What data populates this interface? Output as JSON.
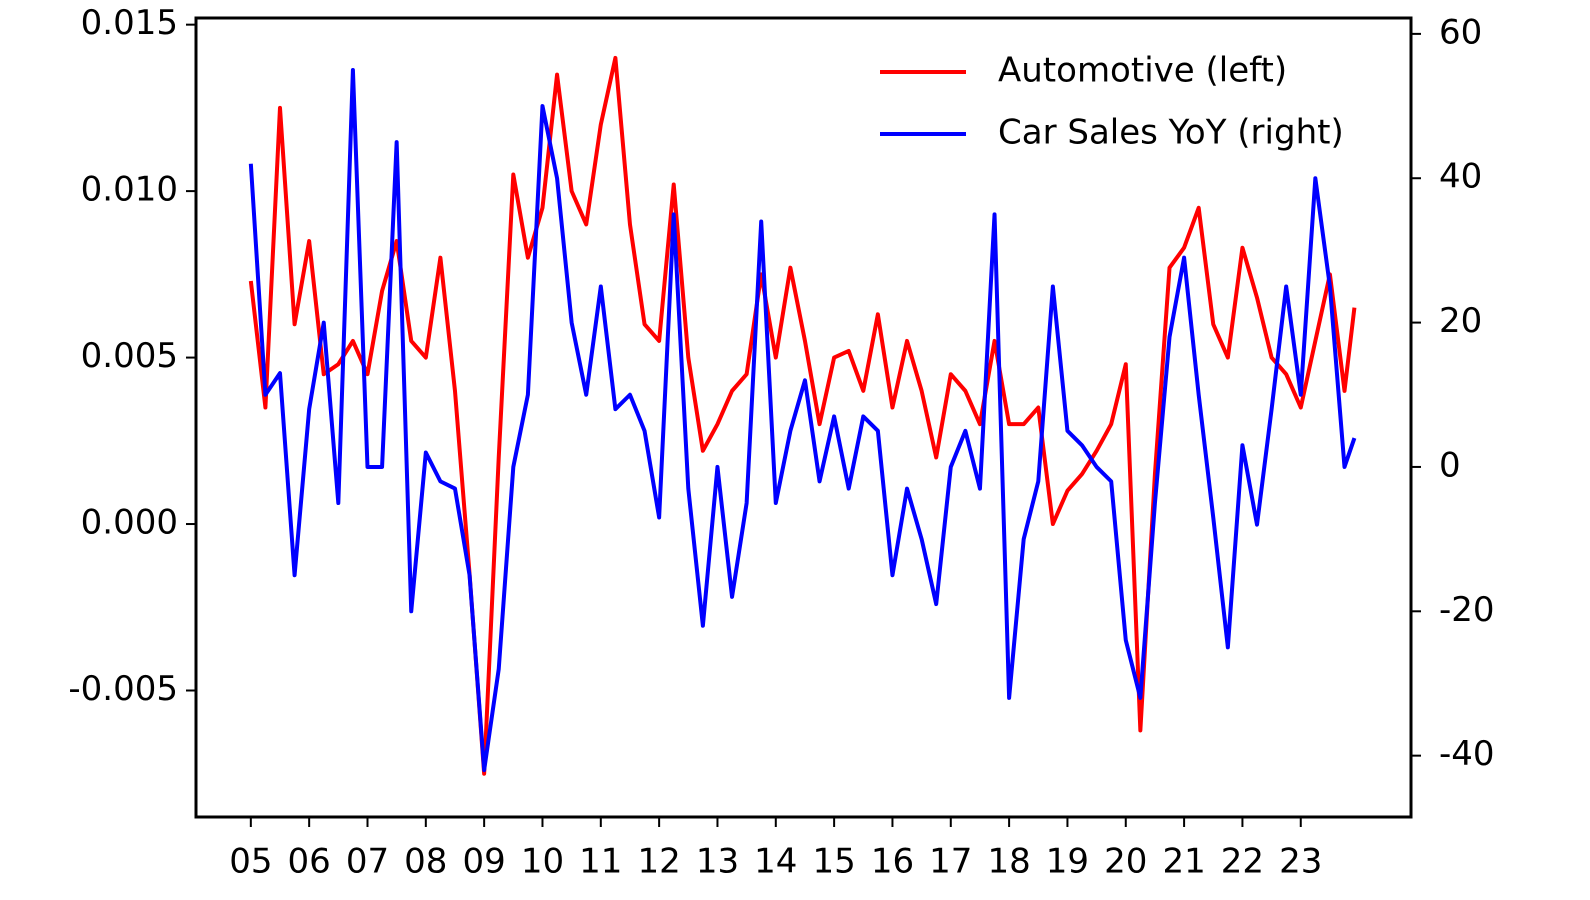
{
  "chart_data": {
    "type": "line",
    "x": [
      5,
      5.25,
      5.5,
      5.75,
      6,
      6.25,
      6.5,
      6.75,
      7,
      7.25,
      7.5,
      7.75,
      8,
      8.25,
      8.5,
      8.75,
      9,
      9.25,
      9.5,
      9.75,
      10,
      10.25,
      10.5,
      10.75,
      11,
      11.25,
      11.5,
      11.75,
      12,
      12.25,
      12.5,
      12.75,
      13,
      13.25,
      13.5,
      13.75,
      14,
      14.25,
      14.5,
      14.75,
      15,
      15.25,
      15.5,
      15.75,
      16,
      16.25,
      16.5,
      16.75,
      17,
      17.25,
      17.5,
      17.75,
      18,
      18.25,
      18.5,
      18.75,
      19,
      19.25,
      19.5,
      19.75,
      20,
      20.25,
      20.5,
      20.75,
      21,
      21.25,
      21.5,
      21.75,
      22,
      22.25,
      22.5,
      22.75,
      23,
      23.25,
      23.5,
      23.75,
      23.92
    ],
    "series": [
      {
        "name": "Automotive (left)",
        "color": "#ff0000",
        "axis": "y",
        "values": [
          0.0073,
          0.0035,
          0.0125,
          0.006,
          0.0085,
          0.0045,
          0.0048,
          0.0055,
          0.0045,
          0.007,
          0.0085,
          0.0055,
          0.005,
          0.008,
          0.004,
          -0.0015,
          -0.0075,
          0.002,
          0.0105,
          0.008,
          0.0095,
          0.0135,
          0.01,
          0.009,
          0.012,
          0.014,
          0.009,
          0.006,
          0.0055,
          0.0102,
          0.005,
          0.0022,
          0.003,
          0.004,
          0.0045,
          0.0075,
          0.005,
          0.0077,
          0.0055,
          0.003,
          0.005,
          0.0052,
          0.004,
          0.0063,
          0.0035,
          0.0055,
          0.004,
          0.002,
          0.0045,
          0.004,
          0.003,
          0.0055,
          0.003,
          0.003,
          0.0035,
          0.0,
          0.001,
          0.0015,
          0.0022,
          0.003,
          0.0048,
          -0.0062,
          0.0015,
          0.0077,
          0.0083,
          0.0095,
          0.006,
          0.005,
          0.0083,
          0.0068,
          0.005,
          0.0045,
          0.0035,
          0.0055,
          0.0075,
          0.004,
          0.0065
        ]
      },
      {
        "name": "Car Sales YoY (right)",
        "color": "#0000ff",
        "axis": "y2",
        "values": [
          42,
          10,
          13,
          -15,
          8,
          20,
          -5,
          55,
          0,
          0,
          45,
          -20,
          2,
          -2,
          -3,
          -15,
          -42,
          -28,
          0,
          10,
          50,
          40,
          20,
          10,
          25,
          8,
          10,
          5,
          -7,
          35,
          -3,
          -22,
          0,
          -18,
          -5,
          34,
          -5,
          5,
          12,
          -2,
          7,
          -3,
          7,
          5,
          -15,
          -3,
          -10,
          -19,
          0,
          5,
          -3,
          35,
          -32,
          -10,
          -2,
          25,
          5,
          3,
          0,
          -2,
          -24,
          -32,
          -5,
          18,
          29,
          10,
          -7,
          -25,
          3,
          -8,
          8,
          25,
          10,
          40,
          25,
          0,
          4
        ]
      }
    ],
    "xlim": [
      4.06,
      24.89
    ],
    "xticks": [
      {
        "value": 5,
        "label": "05"
      },
      {
        "value": 6,
        "label": "06"
      },
      {
        "value": 7,
        "label": "07"
      },
      {
        "value": 8,
        "label": "08"
      },
      {
        "value": 9,
        "label": "09"
      },
      10,
      11,
      12,
      13,
      14,
      15,
      16,
      17,
      18,
      19,
      20,
      21,
      22,
      23
    ],
    "ylim": [
      -0.0088,
      0.0152
    ],
    "yticks": [
      -0.005,
      {
        "value": 0,
        "label": "0.000"
      },
      0.005,
      {
        "value": 0.01,
        "label": "0.010"
      },
      0.015
    ],
    "y2lim": [
      -48.5,
      62.2
    ],
    "y2ticks": [
      -40,
      -20,
      0,
      20,
      40,
      60
    ],
    "legend": "upper right"
  }
}
